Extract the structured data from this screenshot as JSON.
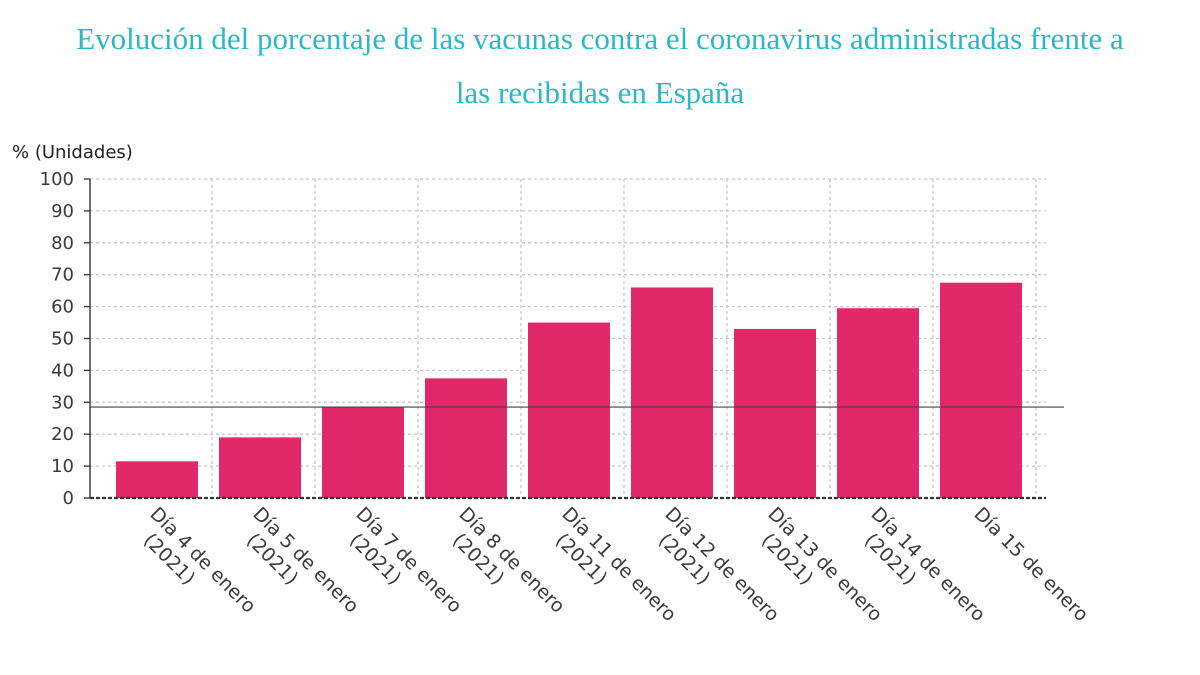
{
  "title_line1": "Evolución del porcentaje de las vacunas contra el coronavirus administradas frente a",
  "title_line2": "las recibidas en España",
  "colors": {
    "bar": "#e0286a",
    "title": "#2bb8c6",
    "grid": "#c8c8c8",
    "axis": "#333333"
  },
  "chart_data": {
    "type": "bar",
    "title": "Evolución del porcentaje de las vacunas contra el coronavirus administradas frente a las recibidas en España",
    "ylabel": "% (Unidades)",
    "xlabel": "",
    "ylim": [
      0,
      100
    ],
    "yticks": [
      0,
      10,
      20,
      30,
      40,
      50,
      60,
      70,
      80,
      90,
      100
    ],
    "grid": true,
    "categories": [
      [
        "Día 4 de enero",
        "(2021)"
      ],
      [
        "Día 5 de enero",
        "(2021)"
      ],
      [
        "Día 7 de enero",
        "(2021)"
      ],
      [
        "Día 8 de enero",
        "(2021)"
      ],
      [
        "Día 11 de enero",
        "(2021)"
      ],
      [
        "Día 12 de enero",
        "(2021)"
      ],
      [
        "Día 13 de enero",
        "(2021)"
      ],
      [
        "Día 14 de enero",
        "(2021)"
      ],
      [
        "Día 15 de enero"
      ]
    ],
    "values": [
      11.5,
      19,
      28.5,
      37.5,
      55,
      66,
      53,
      59.5,
      67.5
    ],
    "reference_line": 28.5
  }
}
